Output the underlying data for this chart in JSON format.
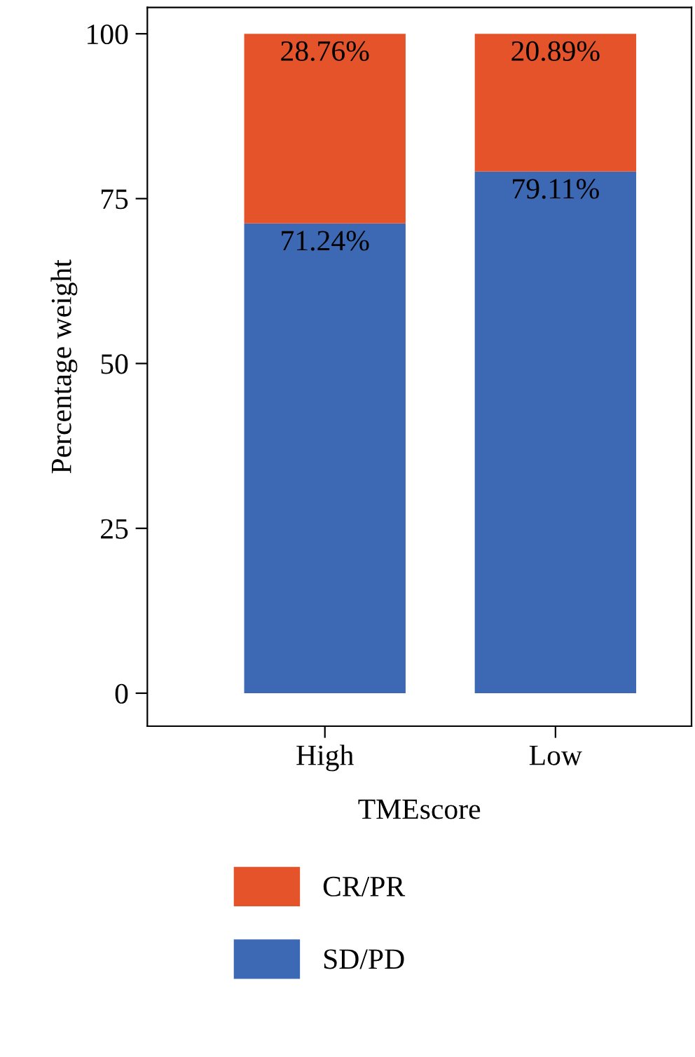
{
  "chart_data": {
    "type": "bar",
    "stacked": true,
    "xlabel": "TMEscore",
    "ylabel": "Percentage weight",
    "categories": [
      "High",
      "Low"
    ],
    "series": [
      {
        "name": "SD/PD",
        "color": "#3c68b4",
        "values": [
          71.24,
          79.11
        ],
        "value_labels": [
          "71.24%",
          "79.11%"
        ]
      },
      {
        "name": "CR/PR",
        "color": "#e4532a",
        "values": [
          28.76,
          20.89
        ],
        "value_labels": [
          "28.76%",
          "20.89%"
        ]
      }
    ],
    "ylim": [
      -5,
      104
    ],
    "yticks": [
      0,
      25,
      50,
      75,
      100
    ],
    "grid": false,
    "legend": "bottom"
  }
}
